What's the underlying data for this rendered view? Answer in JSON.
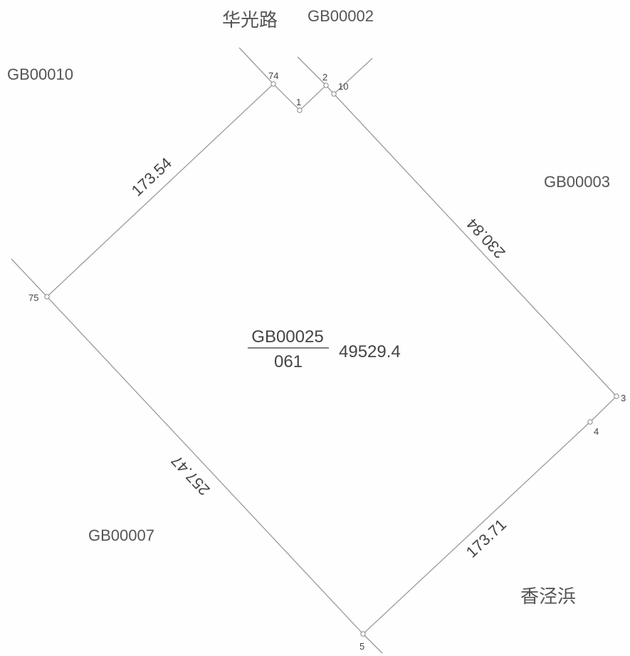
{
  "parcel": {
    "id": "GB00025",
    "code": "061",
    "area": "49529.4"
  },
  "vertices": {
    "v74": "74",
    "v1": "1",
    "v2": "2",
    "v10": "10",
    "v3": "3",
    "v4": "4",
    "v5": "5",
    "v75": "75"
  },
  "edge_lengths": {
    "e74_75": "173.54",
    "e10_3": "230.84",
    "e4_5": "173.71",
    "e75_5": "257.47"
  },
  "neighbors": {
    "north_road": "华光路",
    "north": "GB00002",
    "west": "GB00010",
    "east": "GB00003",
    "southwest": "GB00007",
    "southeast": "香泾浜"
  },
  "colors": {
    "line": "#9a9a9a",
    "text": "#444444"
  }
}
